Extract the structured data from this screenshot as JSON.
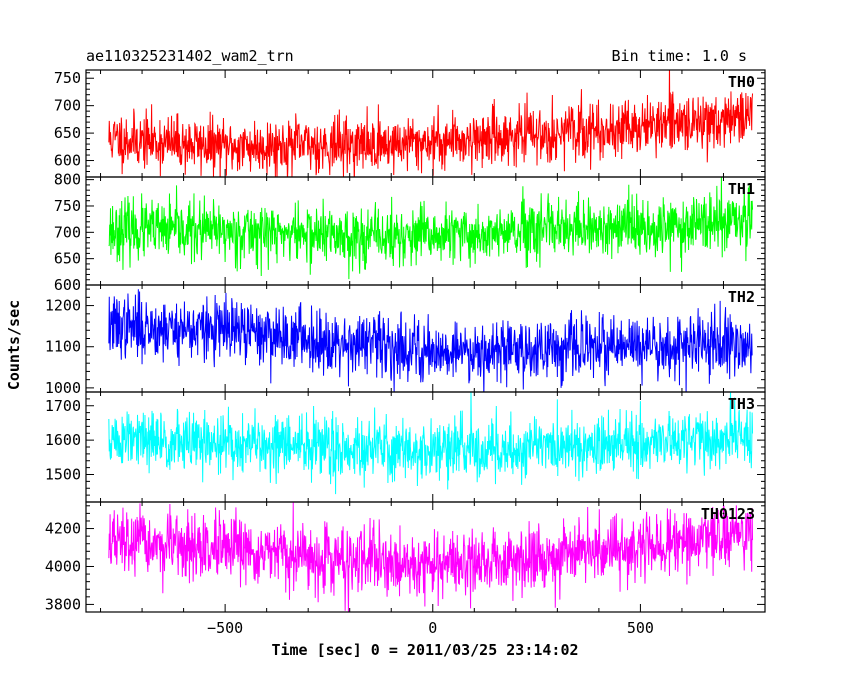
{
  "header": {
    "title": "ae110325231402_wam2_trn",
    "bin_time": "Bin time: 1.0 s"
  },
  "ylabel": "Counts/sec",
  "xlabel": "Time [sec] 0 = 2011/03/25 23:14:02",
  "chart_data": {
    "type": "line",
    "x": {
      "range": [
        -780,
        770
      ],
      "bin_seconds": 1.0
    },
    "xlim": [
      -835,
      800
    ],
    "xticks": {
      "major": [
        -500,
        0,
        500
      ],
      "labels": [
        "−500",
        "0",
        "500"
      ]
    },
    "panels": [
      {
        "name": "TH0",
        "color": "#ff0000",
        "ylim": [
          570,
          765
        ],
        "yticks": [
          600,
          650,
          700,
          750
        ],
        "trend": {
          "x": [
            -780,
            -500,
            -300,
            -100,
            100,
            400,
            770
          ],
          "y": [
            640,
            625,
            628,
            630,
            640,
            655,
            680
          ]
        },
        "noise": 25,
        "seed": 11
      },
      {
        "name": "TH1",
        "color": "#00ff00",
        "ylim": [
          600,
          805
        ],
        "yticks": [
          600,
          650,
          700,
          750,
          800
        ],
        "trend": {
          "x": [
            -780,
            -400,
            -100,
            200,
            500,
            770
          ],
          "y": [
            705,
            700,
            690,
            698,
            710,
            720
          ]
        },
        "noise": 28,
        "seed": 23
      },
      {
        "name": "TH2",
        "color": "#0000ff",
        "ylim": [
          990,
          1250
        ],
        "yticks": [
          1000,
          1100,
          1200
        ],
        "trend": {
          "x": [
            -780,
            -500,
            -200,
            0,
            300,
            770
          ],
          "y": [
            1150,
            1140,
            1110,
            1090,
            1095,
            1105
          ]
        },
        "noise": 38,
        "seed": 37
      },
      {
        "name": "TH3",
        "color": "#00ffff",
        "ylim": [
          1420,
          1740
        ],
        "yticks": [
          1500,
          1600,
          1700
        ],
        "trend": {
          "x": [
            -780,
            -400,
            0,
            300,
            770
          ],
          "y": [
            1600,
            1585,
            1570,
            1580,
            1610
          ]
        },
        "noise": 45,
        "seed": 51
      },
      {
        "name": "TH0123",
        "color": "#ff00ff",
        "ylim": [
          3760,
          4340
        ],
        "yticks": [
          3800,
          4000,
          4200
        ],
        "trend": {
          "x": [
            -780,
            -500,
            -200,
            0,
            300,
            550,
            770
          ],
          "y": [
            4130,
            4080,
            4030,
            4010,
            4050,
            4120,
            4180
          ]
        },
        "noise": 85,
        "seed": 67
      }
    ]
  }
}
